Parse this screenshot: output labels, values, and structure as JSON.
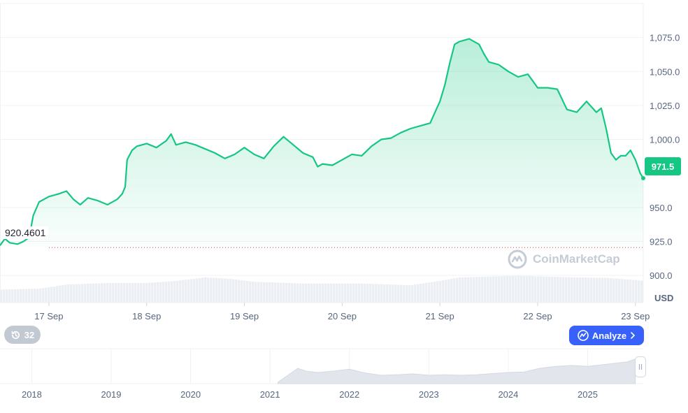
{
  "chart_data": {
    "type": "area",
    "currency": "USD",
    "current_value": "971.5",
    "start_value": "920.4601",
    "y_ticks": [
      "1,075.0",
      "1,050.0",
      "1,025.0",
      "1,000.0",
      "950.0",
      "925.0",
      "900.0"
    ],
    "ylim": [
      880,
      1100
    ],
    "x_ticks": [
      "17 Sep",
      "18 Sep",
      "19 Sep",
      "20 Sep",
      "21 Sep",
      "22 Sep",
      "23 Sep"
    ],
    "price_series": [
      [
        16.5,
        922
      ],
      [
        16.55,
        927
      ],
      [
        16.6,
        924
      ],
      [
        16.68,
        923
      ],
      [
        16.74,
        925
      ],
      [
        16.8,
        928
      ],
      [
        16.84,
        944
      ],
      [
        16.9,
        954
      ],
      [
        17.0,
        958
      ],
      [
        17.1,
        960
      ],
      [
        17.18,
        962
      ],
      [
        17.25,
        956
      ],
      [
        17.32,
        952
      ],
      [
        17.4,
        957
      ],
      [
        17.5,
        955
      ],
      [
        17.6,
        952
      ],
      [
        17.7,
        956
      ],
      [
        17.75,
        960
      ],
      [
        17.78,
        965
      ],
      [
        17.8,
        985
      ],
      [
        17.85,
        992
      ],
      [
        17.9,
        995
      ],
      [
        18.0,
        997
      ],
      [
        18.1,
        994
      ],
      [
        18.2,
        999
      ],
      [
        18.25,
        1004
      ],
      [
        18.3,
        996
      ],
      [
        18.4,
        998
      ],
      [
        18.5,
        996
      ],
      [
        18.6,
        993
      ],
      [
        18.7,
        990
      ],
      [
        18.8,
        986
      ],
      [
        18.9,
        989
      ],
      [
        19.0,
        994
      ],
      [
        19.1,
        989
      ],
      [
        19.2,
        986
      ],
      [
        19.3,
        995
      ],
      [
        19.4,
        1002
      ],
      [
        19.5,
        996
      ],
      [
        19.6,
        990
      ],
      [
        19.7,
        987
      ],
      [
        19.75,
        980
      ],
      [
        19.8,
        982
      ],
      [
        19.9,
        981
      ],
      [
        20.0,
        985
      ],
      [
        20.1,
        989
      ],
      [
        20.2,
        988
      ],
      [
        20.3,
        995
      ],
      [
        20.4,
        1000
      ],
      [
        20.5,
        1001
      ],
      [
        20.6,
        1005
      ],
      [
        20.7,
        1008
      ],
      [
        20.8,
        1010
      ],
      [
        20.9,
        1012
      ],
      [
        20.95,
        1020
      ],
      [
        21.0,
        1028
      ],
      [
        21.05,
        1040
      ],
      [
        21.1,
        1056
      ],
      [
        21.15,
        1070
      ],
      [
        21.2,
        1072
      ],
      [
        21.3,
        1074
      ],
      [
        21.4,
        1070
      ],
      [
        21.45,
        1063
      ],
      [
        21.5,
        1057
      ],
      [
        21.6,
        1055
      ],
      [
        21.7,
        1050
      ],
      [
        21.8,
        1046
      ],
      [
        21.9,
        1048
      ],
      [
        22.0,
        1038
      ],
      [
        22.1,
        1038
      ],
      [
        22.2,
        1037
      ],
      [
        22.3,
        1022
      ],
      [
        22.4,
        1020
      ],
      [
        22.5,
        1028
      ],
      [
        22.6,
        1020
      ],
      [
        22.65,
        1023
      ],
      [
        22.7,
        1008
      ],
      [
        22.75,
        990
      ],
      [
        22.8,
        985
      ],
      [
        22.85,
        988
      ],
      [
        22.9,
        988
      ],
      [
        22.95,
        992
      ],
      [
        23.0,
        985
      ],
      [
        23.05,
        975
      ],
      [
        23.08,
        971.5
      ]
    ],
    "volume_series": [
      [
        16.5,
        0.3
      ],
      [
        16.9,
        0.32
      ],
      [
        17.2,
        0.42
      ],
      [
        17.6,
        0.45
      ],
      [
        18.0,
        0.45
      ],
      [
        18.3,
        0.5
      ],
      [
        18.6,
        0.58
      ],
      [
        18.85,
        0.55
      ],
      [
        19.1,
        0.48
      ],
      [
        19.6,
        0.44
      ],
      [
        20.2,
        0.44
      ],
      [
        20.7,
        0.4
      ],
      [
        21.0,
        0.5
      ],
      [
        21.2,
        0.58
      ],
      [
        21.5,
        0.6
      ],
      [
        21.8,
        0.62
      ],
      [
        22.1,
        0.6
      ],
      [
        22.4,
        0.58
      ],
      [
        22.7,
        0.57
      ],
      [
        23.0,
        0.52
      ],
      [
        23.08,
        0.5
      ]
    ],
    "overview_x_ticks": [
      "2018",
      "2019",
      "2020",
      "2021",
      "2022",
      "2023",
      "2024",
      "2025"
    ],
    "overview_series": [
      [
        2021.1,
        0.05
      ],
      [
        2021.25,
        0.35
      ],
      [
        2021.35,
        0.55
      ],
      [
        2021.45,
        0.45
      ],
      [
        2021.6,
        0.4
      ],
      [
        2021.8,
        0.45
      ],
      [
        2022.0,
        0.52
      ],
      [
        2022.2,
        0.38
      ],
      [
        2022.4,
        0.3
      ],
      [
        2022.6,
        0.32
      ],
      [
        2022.8,
        0.35
      ],
      [
        2023.0,
        0.3
      ],
      [
        2023.2,
        0.32
      ],
      [
        2023.4,
        0.3
      ],
      [
        2023.6,
        0.32
      ],
      [
        2023.8,
        0.36
      ],
      [
        2024.0,
        0.4
      ],
      [
        2024.2,
        0.42
      ],
      [
        2024.4,
        0.55
      ],
      [
        2024.6,
        0.62
      ],
      [
        2024.8,
        0.65
      ],
      [
        2025.0,
        0.62
      ],
      [
        2025.2,
        0.68
      ],
      [
        2025.5,
        0.78
      ],
      [
        2025.6,
        0.88
      ]
    ],
    "overview_x_range": [
      2017.6,
      2025.7
    ],
    "grid": true,
    "colors": {
      "line": "#16c784",
      "area_top": "#16c784",
      "volume": "#ebeef2",
      "overview_fill": "#e2e6ec",
      "baseline": "#ea3943",
      "grid": "#eff2f5"
    }
  },
  "labels": {
    "currency": "USD",
    "current_price": "971.5",
    "start_price": "920.4601",
    "watermark": "CoinMarketCap",
    "history_count": "32",
    "analyze": "Analyze"
  },
  "icons": {
    "history": "history-icon",
    "analyze": "analyze-icon",
    "chevron": "chevron-right-icon",
    "handle": "handle-grip-icon",
    "logo": "coinmarketcap-logo-icon"
  }
}
